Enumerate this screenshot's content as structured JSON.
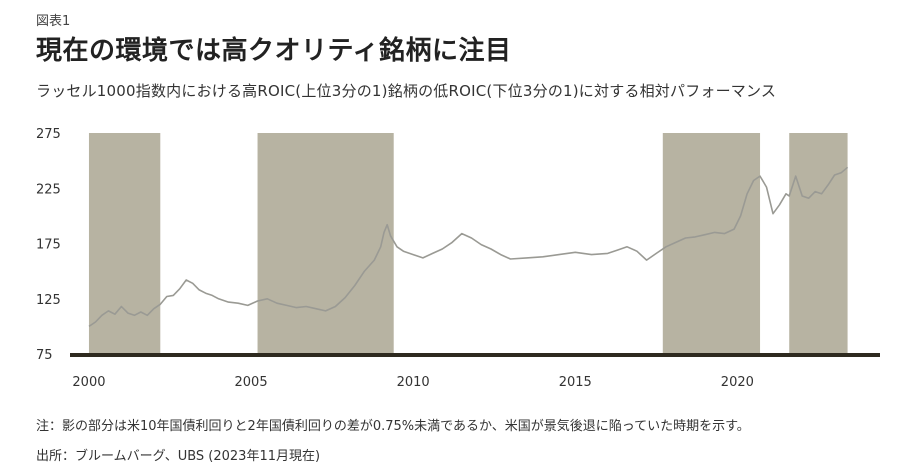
{
  "header": {
    "figure_label": "図表1",
    "title": "現在の環境では高クオリティ銘柄に注目",
    "subtitle": "ラッセル1000指数内における高ROIC(上位3分の1)銘柄の低ROIC(下位3分の1)に対する相対パフォーマンス"
  },
  "footer": {
    "note": "注：影の部分は米10年国債利回りと2年国債利回りの差が0.75%未満であるか、米国が景気後退に陥っていた時期を示す。",
    "source": "出所：ブルームバーグ、UBS (2023年11月現在)"
  },
  "chart_data": {
    "type": "line",
    "title": "",
    "xlabel": "",
    "ylabel": "",
    "xlim": [
      1999.6,
      2024.4
    ],
    "ylim": [
      75,
      275
    ],
    "y_ticks": [
      75,
      125,
      175,
      225,
      275
    ],
    "x_ticks": [
      2000,
      2005,
      2010,
      2015,
      2020
    ],
    "grid": false,
    "colors": {
      "line": "#9a9a94",
      "shade": "#b7b3a2",
      "axis": "#2e2a1f"
    },
    "shaded_periods": [
      [
        2000.0,
        2002.2
      ],
      [
        2005.2,
        2009.4
      ],
      [
        2017.7,
        2020.7
      ],
      [
        2021.6,
        2023.4
      ]
    ],
    "series": [
      {
        "name": "",
        "x": [
          2000.0,
          2000.2,
          2000.4,
          2000.6,
          2000.8,
          2001.0,
          2001.2,
          2001.4,
          2001.6,
          2001.8,
          2002.0,
          2002.2,
          2002.4,
          2002.6,
          2002.8,
          2003.0,
          2003.2,
          2003.4,
          2003.6,
          2003.8,
          2004.0,
          2004.3,
          2004.6,
          2004.9,
          2005.2,
          2005.5,
          2005.8,
          2006.1,
          2006.4,
          2006.7,
          2007.0,
          2007.3,
          2007.6,
          2007.9,
          2008.2,
          2008.5,
          2008.8,
          2009.0,
          2009.1,
          2009.2,
          2009.3,
          2009.5,
          2009.7,
          2010.0,
          2010.3,
          2010.6,
          2010.9,
          2011.2,
          2011.5,
          2011.8,
          2012.1,
          2012.4,
          2012.7,
          2013.0,
          2013.5,
          2014.0,
          2014.5,
          2015.0,
          2015.5,
          2016.0,
          2016.3,
          2016.6,
          2016.9,
          2017.2,
          2017.5,
          2017.8,
          2018.1,
          2018.4,
          2018.7,
          2019.0,
          2019.3,
          2019.6,
          2019.9,
          2020.1,
          2020.3,
          2020.5,
          2020.7,
          2020.9,
          2021.1,
          2021.3,
          2021.5,
          2021.6,
          2021.8,
          2022.0,
          2022.2,
          2022.4,
          2022.6,
          2022.8,
          2023.0,
          2023.2,
          2023.4
        ],
        "values": [
          100,
          104,
          110,
          114,
          111,
          118,
          112,
          110,
          113,
          110,
          116,
          120,
          127,
          128,
          134,
          142,
          139,
          133,
          130,
          128,
          125,
          122,
          121,
          119,
          123,
          125,
          121,
          119,
          117,
          118,
          116,
          114,
          118,
          126,
          137,
          150,
          160,
          172,
          185,
          192,
          182,
          172,
          168,
          165,
          162,
          166,
          170,
          176,
          184,
          180,
          174,
          170,
          165,
          161,
          162,
          163,
          165,
          167,
          165,
          166,
          169,
          172,
          168,
          160,
          166,
          172,
          176,
          180,
          181,
          183,
          185,
          184,
          188,
          200,
          220,
          232,
          236,
          226,
          202,
          210,
          220,
          218,
          236,
          218,
          216,
          222,
          220,
          228,
          237,
          239,
          244
        ]
      }
    ]
  }
}
